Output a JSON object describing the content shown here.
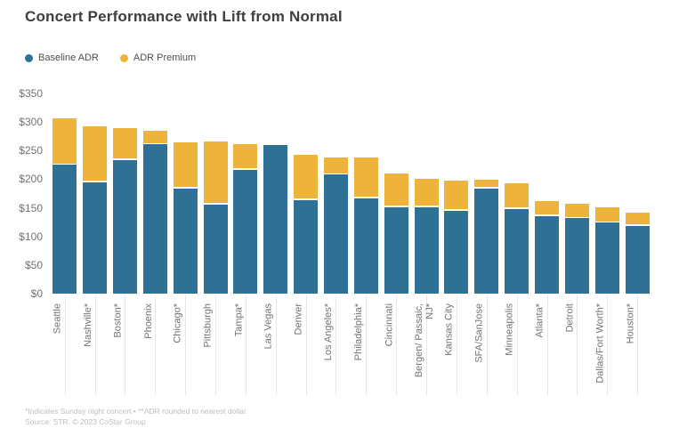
{
  "title": "Concert Performance with Lift from Normal",
  "legend": [
    {
      "label": "Baseline ADR",
      "color": "#2e7194"
    },
    {
      "label": "ADR Premium",
      "color": "#eeb33b"
    }
  ],
  "colors": {
    "baseline_blue": "#2e7194",
    "premium_yellow": "#eeb33b",
    "title_text": "#3e3e3e",
    "axis_text": "#737373",
    "tick_line": "#e6e6e6",
    "footer_text": "#bdbdbd"
  },
  "chart_data": {
    "type": "bar",
    "stacked": true,
    "title": "Concert Performance with Lift from Normal",
    "xlabel": "",
    "ylabel": "",
    "ylim": [
      0,
      350
    ],
    "y_ticks": [
      "$0",
      "$50",
      "$100",
      "$150",
      "$200",
      "$250",
      "$300",
      "$350"
    ],
    "y_tick_values": [
      0,
      50,
      100,
      150,
      200,
      250,
      300,
      350
    ],
    "grid": false,
    "legend_position": "top-left",
    "categories": [
      "Seattle",
      "Nashville*",
      "Boston*",
      "Phoenix",
      "Chicago*",
      "Pittsburgh",
      "Tampa*",
      "Las Vegas",
      "Denver",
      "Los Angeles*",
      "Philadelphia*",
      "Cincinnati",
      "Bergen/ Passaic,\nNJ*",
      "Kansas City",
      "SFA/SanJose",
      "Minneapolis",
      "Atlanta*",
      "Detroit",
      "Dallas/Fort Worth*",
      "Houston*"
    ],
    "series": [
      {
        "name": "Baseline ADR",
        "color": "#2e7194",
        "values": [
          225,
          195,
          234,
          261,
          184,
          156,
          217,
          260,
          164,
          208,
          167,
          151,
          151,
          145,
          184,
          148,
          136,
          132,
          124,
          119
        ]
      },
      {
        "name": "ADR Premium",
        "color": "#eeb33b",
        "values": [
          82,
          98,
          56,
          23,
          80,
          110,
          44,
          0,
          79,
          30,
          71,
          59,
          49,
          52,
          15,
          45,
          26,
          25,
          27,
          22
        ]
      }
    ],
    "totals": [
      307,
      293,
      290,
      284,
      264,
      266,
      261,
      260,
      243,
      238,
      238,
      210,
      200,
      197,
      199,
      193,
      162,
      157,
      151,
      141
    ]
  },
  "footnote": "*Indicates Sunday night concert • **ADR rounded to nearest dollar",
  "source": "Source: STR. © 2023 CoStar Group"
}
